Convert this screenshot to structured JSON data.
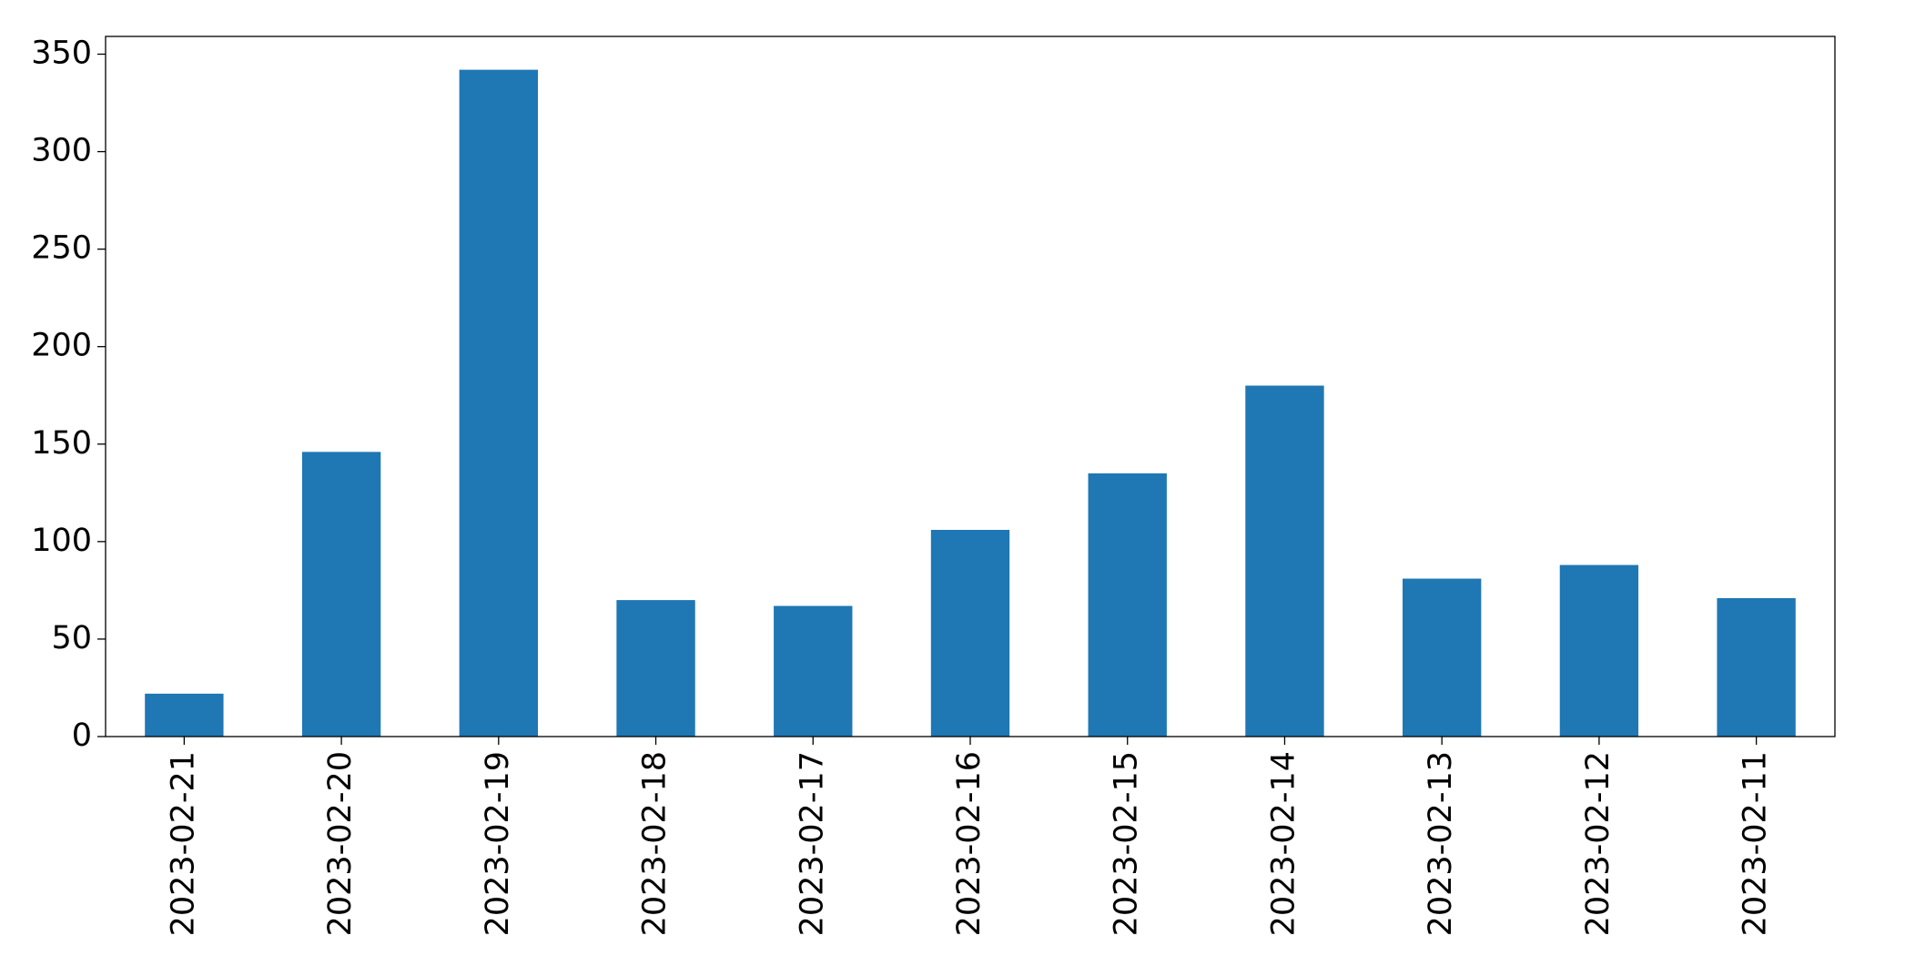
{
  "chart_data": {
    "type": "bar",
    "categories": [
      "2023-02-21",
      "2023-02-20",
      "2023-02-19",
      "2023-02-18",
      "2023-02-17",
      "2023-02-16",
      "2023-02-15",
      "2023-02-14",
      "2023-02-13",
      "2023-02-12",
      "2023-02-11"
    ],
    "values": [
      22,
      146,
      342,
      70,
      67,
      106,
      135,
      180,
      81,
      88,
      71
    ],
    "color": "#1f77b4",
    "ylim": [
      0,
      359.1
    ],
    "yticks": [
      0,
      50,
      100,
      150,
      200,
      250,
      300,
      350
    ],
    "grid": false
  }
}
